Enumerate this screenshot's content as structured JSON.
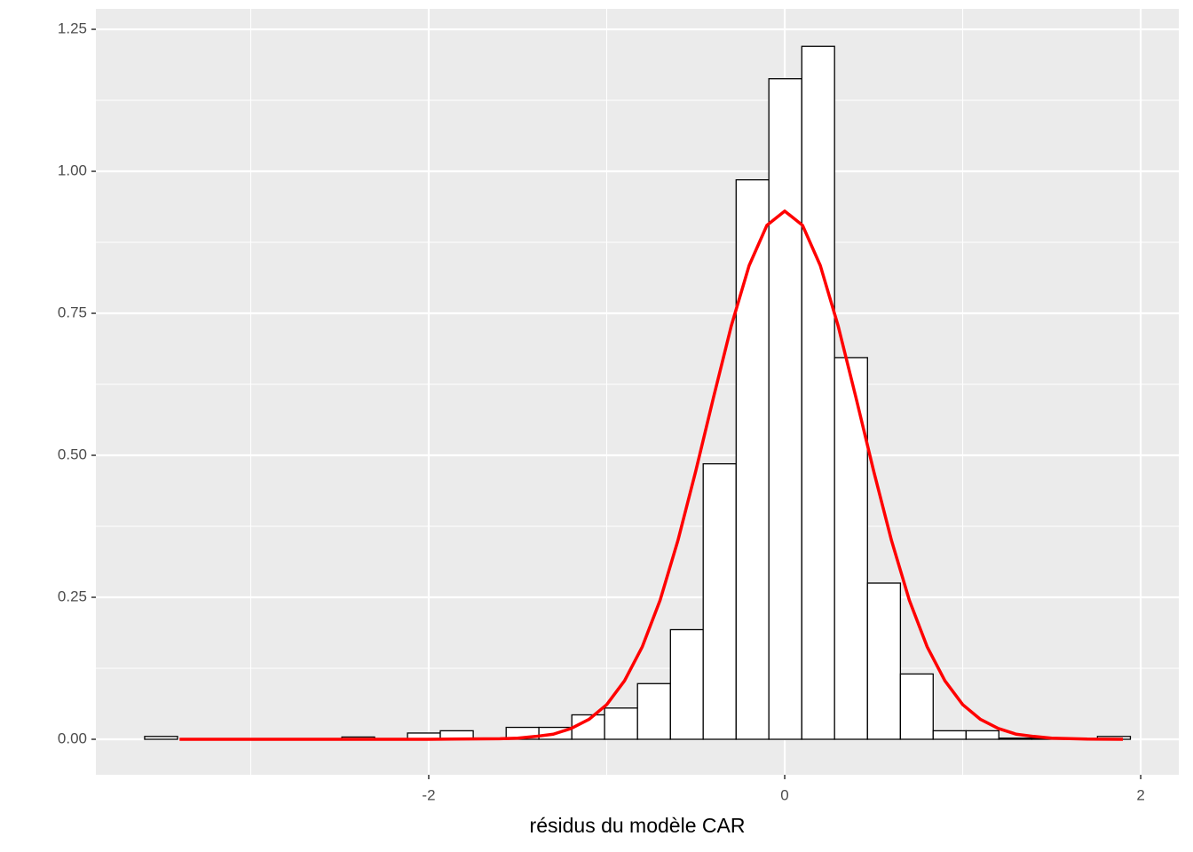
{
  "chart_data": {
    "type": "histogram",
    "xlabel": "résidus du modèle CAR",
    "bins": [
      -3.596,
      -3.411,
      -3.227,
      -3.042,
      -2.858,
      -2.673,
      -2.488,
      -2.304,
      -2.119,
      -1.935,
      -1.75,
      -1.565,
      -1.381,
      -1.196,
      -1.012,
      -0.827,
      -0.642,
      -0.458,
      -0.273,
      -0.089,
      0.096,
      0.28,
      0.465,
      0.65,
      0.834,
      1.019,
      1.203,
      1.388,
      1.573,
      1.757,
      1.942
    ],
    "counts": [
      0.005,
      0,
      0,
      0,
      0,
      0,
      0.004,
      0,
      0.011,
      0.015,
      0,
      0.021,
      0.021,
      0.043,
      0.055,
      0.098,
      0.193,
      0.485,
      0.985,
      1.163,
      1.22,
      0.672,
      0.275,
      0.115,
      0.015,
      0.015,
      0.002,
      0.002,
      0,
      0.005
    ],
    "bar_color": "#ffffff",
    "bar_edge": "#000000",
    "density": {
      "color": "#ff0000",
      "x": [
        -3.4,
        -2.5,
        -2.0,
        -1.6,
        -1.5,
        -1.4,
        -1.3,
        -1.2,
        -1.1,
        -1.0,
        -0.9,
        -0.8,
        -0.7,
        -0.6,
        -0.5,
        -0.4,
        -0.3,
        -0.2,
        -0.1,
        0,
        0.1,
        0.2,
        0.3,
        0.4,
        0.5,
        0.6,
        0.7,
        0.8,
        0.9,
        1.0,
        1.1,
        1.2,
        1.3,
        1.4,
        1.5,
        1.7,
        1.9
      ],
      "values": [
        0,
        0,
        0,
        0.001,
        0.002,
        0.005,
        0.009,
        0.019,
        0.035,
        0.061,
        0.103,
        0.163,
        0.245,
        0.35,
        0.472,
        0.602,
        0.728,
        0.834,
        0.905,
        0.93,
        0.905,
        0.834,
        0.728,
        0.602,
        0.472,
        0.35,
        0.245,
        0.163,
        0.103,
        0.061,
        0.035,
        0.019,
        0.009,
        0.005,
        0.002,
        0.0003,
        0
      ]
    },
    "xlim": [
      -3.87,
      2.214
    ],
    "ylim": [
      -0.0625,
      1.286
    ],
    "xticks": [
      -2,
      0,
      2
    ],
    "yticks": [
      {
        "value": 0,
        "label": "0.00"
      },
      {
        "value": 0.25,
        "label": "0.25"
      },
      {
        "value": 0.5,
        "label": "0.50"
      },
      {
        "value": 0.75,
        "label": "0.75"
      },
      {
        "value": 1,
        "label": "1.00"
      },
      {
        "value": 1.25,
        "label": "1.25"
      }
    ],
    "x_minor_grid": [
      -3,
      -1,
      1
    ],
    "y_minor_grid": [
      0.125,
      0.375,
      0.625,
      0.875,
      1.125
    ],
    "grid": true
  }
}
